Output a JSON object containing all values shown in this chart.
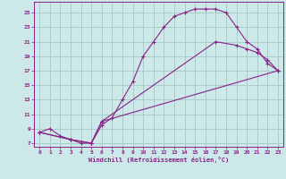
{
  "xlabel": "Windchill (Refroidissement éolien,°C)",
  "bg_color": "#cce8e8",
  "grid_color": "#aacccc",
  "line_color": "#882288",
  "xlim": [
    -0.5,
    23.5
  ],
  "ylim": [
    6.5,
    26.5
  ],
  "xticks": [
    0,
    1,
    2,
    3,
    4,
    5,
    6,
    7,
    8,
    9,
    10,
    11,
    12,
    13,
    14,
    15,
    16,
    17,
    18,
    19,
    20,
    21,
    22,
    23
  ],
  "yticks": [
    7,
    9,
    11,
    13,
    15,
    17,
    19,
    21,
    23,
    25
  ],
  "line1_x": [
    0,
    1,
    2,
    3,
    4,
    5,
    6,
    7,
    8,
    9,
    10,
    11,
    12,
    13,
    14,
    15,
    16,
    17,
    18,
    19,
    20,
    21,
    22,
    23
  ],
  "line1_y": [
    8.5,
    9,
    8,
    7.5,
    7,
    7,
    9.5,
    10.5,
    13,
    15.5,
    19,
    21,
    23,
    24.5,
    25,
    25.5,
    25.5,
    25.5,
    25,
    23,
    21,
    20,
    18,
    17
  ],
  "line2_x": [
    0,
    3,
    5,
    6,
    23
  ],
  "line2_y": [
    8.5,
    7.5,
    7,
    10,
    17
  ],
  "line3_x": [
    0,
    3,
    5,
    6,
    17,
    19,
    20,
    21,
    22,
    23
  ],
  "line3_y": [
    8.5,
    7.5,
    7,
    10,
    21,
    20.5,
    20,
    19.5,
    18.5,
    17
  ]
}
